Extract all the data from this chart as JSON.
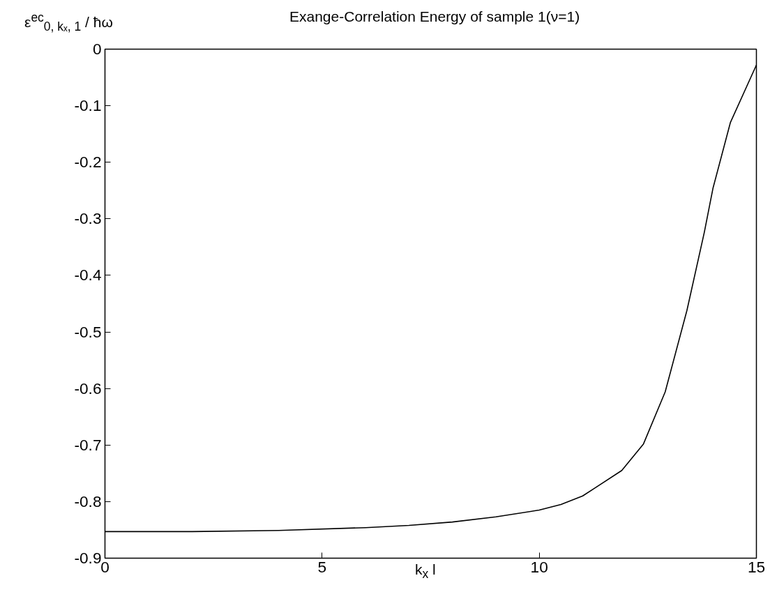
{
  "chart_data": {
    "type": "line",
    "title": "Exange-Correlation Energy of sample 1(ν=1)",
    "xlabel": "k$_{x}$ l",
    "ylabel": "ε$^{ec}$$_{0, kₓ, 1}$ / ħω",
    "x": [
      0,
      2,
      4,
      6,
      7,
      8,
      9,
      10,
      10.5,
      11,
      11.3,
      11.9,
      12.4,
      12.9,
      13.4,
      13.8,
      14,
      14.4,
      15
    ],
    "series": [
      {
        "color": "#000000",
        "values": [
          -0.853,
          -0.853,
          -0.851,
          -0.846,
          -0.842,
          -0.836,
          -0.827,
          -0.815,
          -0.805,
          -0.79,
          -0.775,
          -0.745,
          -0.698,
          -0.606,
          -0.462,
          -0.324,
          -0.246,
          -0.13,
          -0.028
        ]
      }
    ],
    "xlim": [
      0,
      15
    ],
    "ylim": [
      -0.9,
      0
    ],
    "xticks": [
      0,
      5,
      10,
      15
    ],
    "yticks": [
      -0.9,
      -0.8,
      -0.7,
      -0.6,
      -0.5,
      -0.4,
      -0.3,
      -0.2,
      -0.1,
      0
    ],
    "grid": false,
    "marker": "none",
    "line_style": "solid"
  }
}
